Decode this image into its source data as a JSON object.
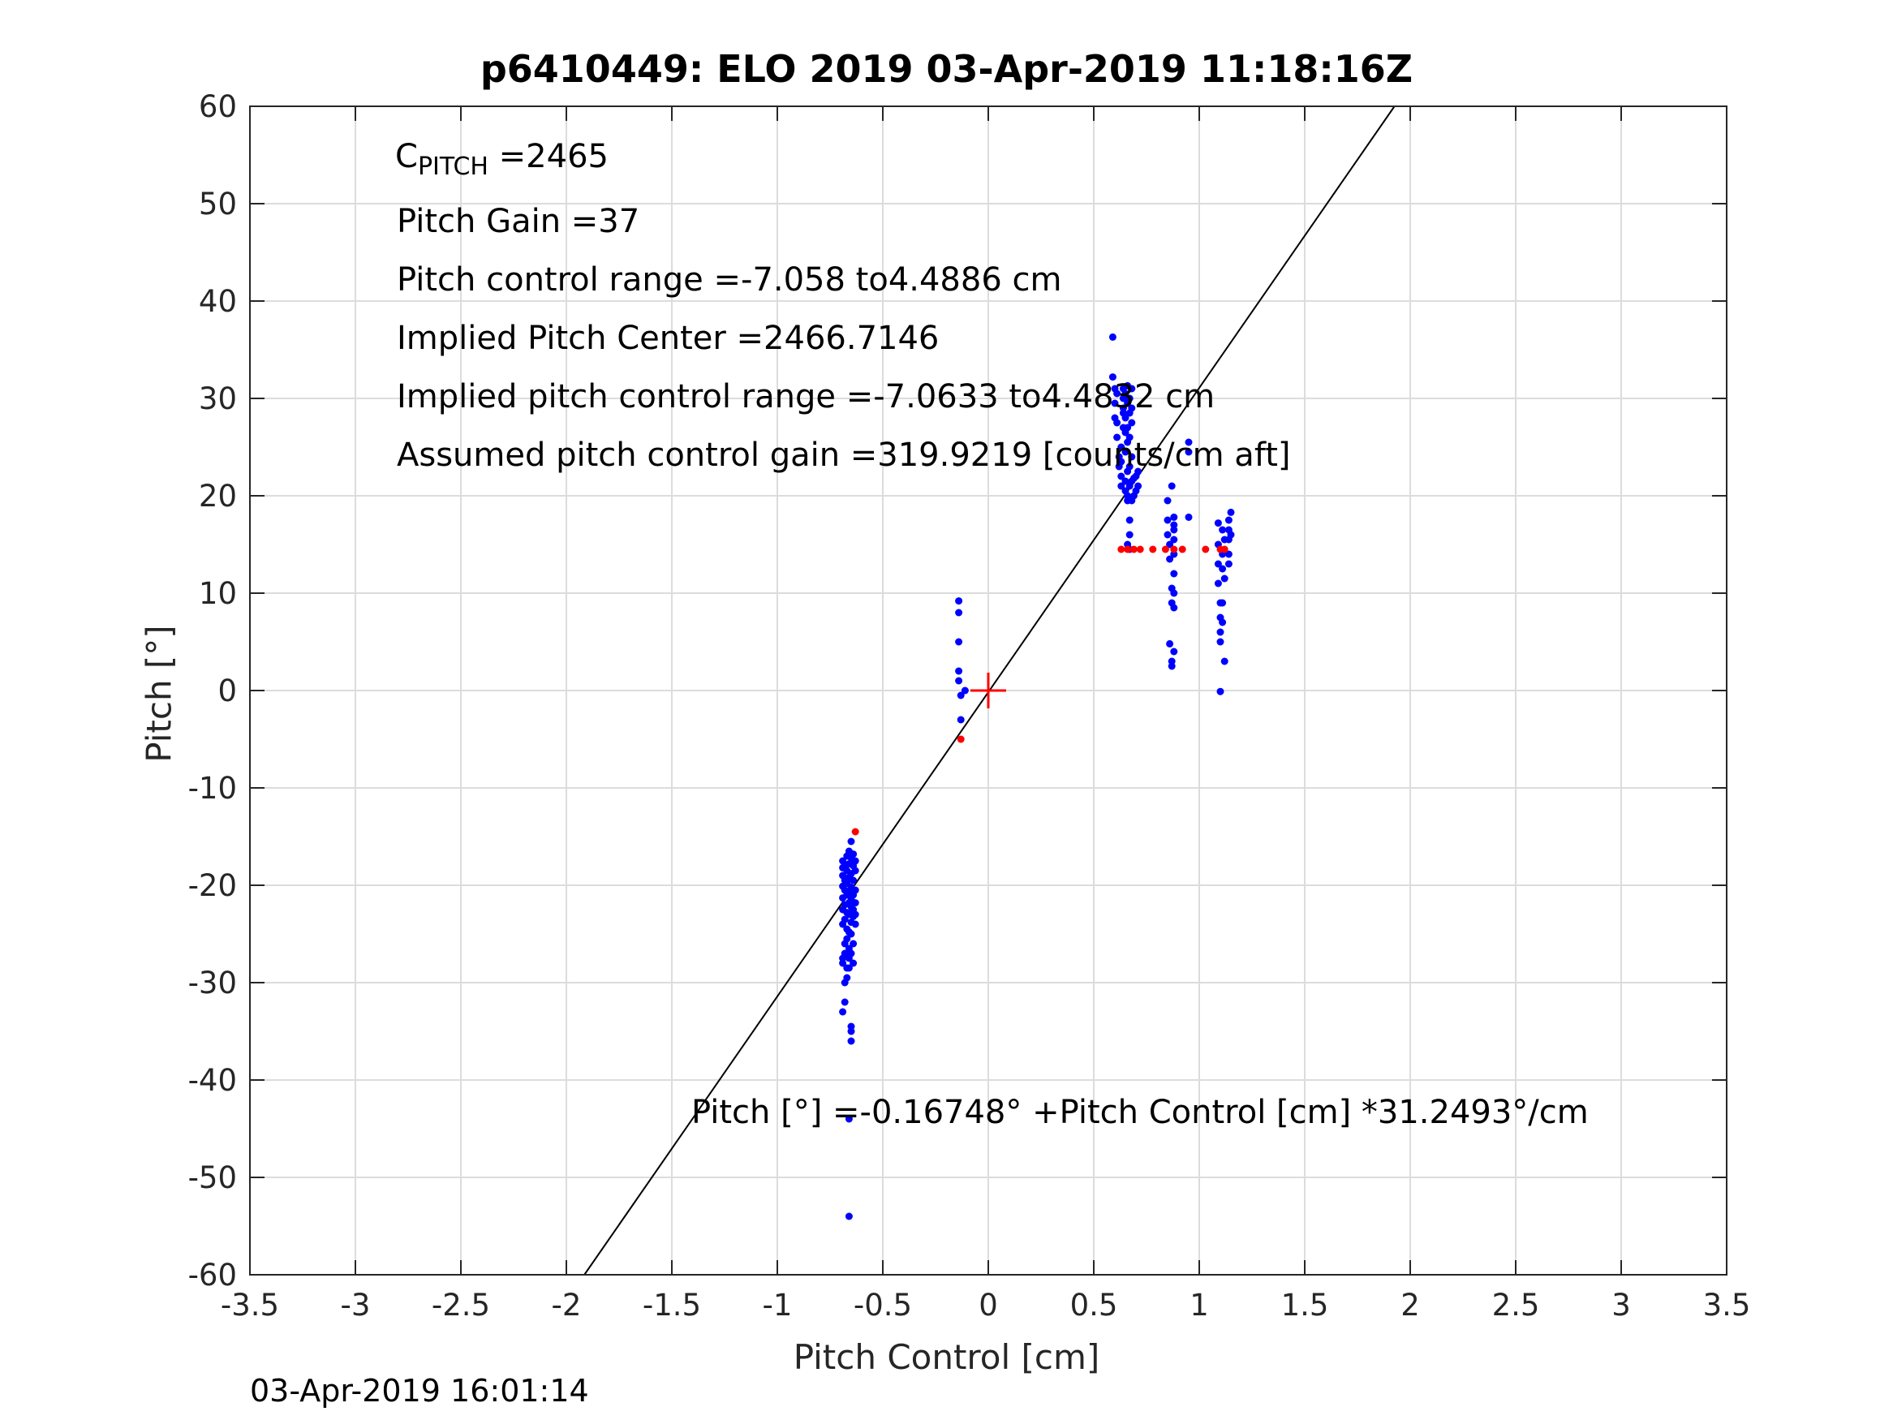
{
  "chart_data": {
    "type": "scatter",
    "title": "p6410449: ELO 2019 03-Apr-2019 11:18:16Z",
    "xlabel": "Pitch Control [cm]",
    "ylabel": "Pitch [°]",
    "xlim": [
      -3.5,
      3.5
    ],
    "ylim": [
      -60,
      60
    ],
    "xticks": [
      -3.5,
      -3,
      -2.5,
      -2,
      -1.5,
      -1,
      -0.5,
      0,
      0.5,
      1,
      1.5,
      2,
      2.5,
      3,
      3.5
    ],
    "yticks": [
      -60,
      -50,
      -40,
      -30,
      -20,
      -10,
      0,
      10,
      20,
      30,
      40,
      50,
      60
    ],
    "grid": true,
    "fit_line": {
      "intercept": -0.16748,
      "slope": 31.2493,
      "color": "#000000"
    },
    "center_marker": {
      "x": 0,
      "y": 0,
      "color": "#ff0000"
    },
    "series": [
      {
        "name": "measurements",
        "color": "#0000ff",
        "points": [
          [
            -0.69,
            -17.5
          ],
          [
            -0.69,
            -18.2
          ],
          [
            -0.69,
            -19.0
          ],
          [
            -0.69,
            -20.1
          ],
          [
            -0.69,
            -21.3
          ],
          [
            -0.69,
            -22.5
          ],
          [
            -0.69,
            -24.0
          ],
          [
            -0.69,
            -27.5
          ],
          [
            -0.69,
            -28.0
          ],
          [
            -0.69,
            -33.0
          ],
          [
            -0.68,
            -18.0
          ],
          [
            -0.68,
            -19.5
          ],
          [
            -0.68,
            -20.5
          ],
          [
            -0.68,
            -22.0
          ],
          [
            -0.68,
            -23.5
          ],
          [
            -0.68,
            -26.0
          ],
          [
            -0.68,
            -27.0
          ],
          [
            -0.68,
            -30.0
          ],
          [
            -0.68,
            -32.0
          ],
          [
            -0.67,
            -17.0
          ],
          [
            -0.67,
            -18.5
          ],
          [
            -0.67,
            -19.8
          ],
          [
            -0.67,
            -21.0
          ],
          [
            -0.67,
            -22.8
          ],
          [
            -0.67,
            -24.5
          ],
          [
            -0.67,
            -25.5
          ],
          [
            -0.67,
            -28.5
          ],
          [
            -0.67,
            -29.5
          ],
          [
            -0.66,
            -16.5
          ],
          [
            -0.66,
            -17.8
          ],
          [
            -0.66,
            -19.2
          ],
          [
            -0.66,
            -20.8
          ],
          [
            -0.66,
            -21.8
          ],
          [
            -0.66,
            -23.0
          ],
          [
            -0.66,
            -24.8
          ],
          [
            -0.66,
            -26.5
          ],
          [
            -0.66,
            -27.5
          ],
          [
            -0.66,
            -28.5
          ],
          [
            -0.66,
            -44.0
          ],
          [
            -0.66,
            -54.0
          ],
          [
            -0.65,
            -15.5
          ],
          [
            -0.65,
            -17.2
          ],
          [
            -0.65,
            -18.8
          ],
          [
            -0.65,
            -20.2
          ],
          [
            -0.65,
            -21.5
          ],
          [
            -0.65,
            -22.2
          ],
          [
            -0.65,
            -23.8
          ],
          [
            -0.65,
            -25.0
          ],
          [
            -0.65,
            -27.0
          ],
          [
            -0.65,
            -34.5
          ],
          [
            -0.65,
            -35.0
          ],
          [
            -0.65,
            -36.0
          ],
          [
            -0.64,
            -16.8
          ],
          [
            -0.64,
            -18.0
          ],
          [
            -0.64,
            -19.5
          ],
          [
            -0.64,
            -21.0
          ],
          [
            -0.64,
            -22.5
          ],
          [
            -0.64,
            -23.2
          ],
          [
            -0.64,
            -26.0
          ],
          [
            -0.64,
            -28.0
          ],
          [
            -0.63,
            -17.5
          ],
          [
            -0.63,
            -18.5
          ],
          [
            -0.63,
            -20.5
          ],
          [
            -0.63,
            -21.8
          ],
          [
            -0.63,
            -23.0
          ],
          [
            -0.63,
            -24.0
          ],
          [
            -0.14,
            9.2
          ],
          [
            -0.14,
            8.0
          ],
          [
            -0.14,
            5.0
          ],
          [
            -0.14,
            2.0
          ],
          [
            -0.14,
            1.0
          ],
          [
            -0.13,
            -0.5
          ],
          [
            -0.13,
            -3.0
          ],
          [
            -0.11,
            0.0
          ],
          [
            0.59,
            36.3
          ],
          [
            0.59,
            32.2
          ],
          [
            0.6,
            31.0
          ],
          [
            0.6,
            29.5
          ],
          [
            0.6,
            28.0
          ],
          [
            0.61,
            30.5
          ],
          [
            0.61,
            27.5
          ],
          [
            0.61,
            26.0
          ],
          [
            0.62,
            24.0
          ],
          [
            0.62,
            23.0
          ],
          [
            0.63,
            21.0
          ],
          [
            0.63,
            22.0
          ],
          [
            0.63,
            23.5
          ],
          [
            0.63,
            25.0
          ],
          [
            0.64,
            27.0
          ],
          [
            0.64,
            28.5
          ],
          [
            0.64,
            30.0
          ],
          [
            0.64,
            31.0
          ],
          [
            0.64,
            29.0
          ],
          [
            0.65,
            20.5
          ],
          [
            0.65,
            21.5
          ],
          [
            0.65,
            24.5
          ],
          [
            0.65,
            26.5
          ],
          [
            0.65,
            28.0
          ],
          [
            0.65,
            30.5
          ],
          [
            0.66,
            20.0
          ],
          [
            0.66,
            22.5
          ],
          [
            0.66,
            25.5
          ],
          [
            0.66,
            27.0
          ],
          [
            0.66,
            29.5
          ],
          [
            0.66,
            31.3
          ],
          [
            0.66,
            19.5
          ],
          [
            0.66,
            15.0
          ],
          [
            0.67,
            21.0
          ],
          [
            0.67,
            23.0
          ],
          [
            0.67,
            26.0
          ],
          [
            0.67,
            28.5
          ],
          [
            0.67,
            30.0
          ],
          [
            0.67,
            17.5
          ],
          [
            0.67,
            16.0
          ],
          [
            0.67,
            14.5
          ],
          [
            0.68,
            19.5
          ],
          [
            0.68,
            21.5
          ],
          [
            0.68,
            24.0
          ],
          [
            0.68,
            27.5
          ],
          [
            0.68,
            29.0
          ],
          [
            0.68,
            31.0
          ],
          [
            0.69,
            20.0
          ],
          [
            0.69,
            21.8
          ],
          [
            0.7,
            20.5
          ],
          [
            0.7,
            22.0
          ],
          [
            0.71,
            21.0
          ],
          [
            0.71,
            22.5
          ],
          [
            0.85,
            19.5
          ],
          [
            0.85,
            17.5
          ],
          [
            0.85,
            16.0
          ],
          [
            0.86,
            15.0
          ],
          [
            0.86,
            13.5
          ],
          [
            0.86,
            4.8
          ],
          [
            0.87,
            3.0
          ],
          [
            0.87,
            2.5
          ],
          [
            0.87,
            10.5
          ],
          [
            0.87,
            9.0
          ],
          [
            0.87,
            21.0
          ],
          [
            0.88,
            17.0
          ],
          [
            0.88,
            15.5
          ],
          [
            0.88,
            14.0
          ],
          [
            0.88,
            12.0
          ],
          [
            0.88,
            10.0
          ],
          [
            0.88,
            8.5
          ],
          [
            0.88,
            4.0
          ],
          [
            0.88,
            16.5
          ],
          [
            0.88,
            17.8
          ],
          [
            0.95,
            25.5
          ],
          [
            0.95,
            24.5
          ],
          [
            0.95,
            17.8
          ],
          [
            1.09,
            17.2
          ],
          [
            1.09,
            15.0
          ],
          [
            1.09,
            13.0
          ],
          [
            1.09,
            11.0
          ],
          [
            1.1,
            9.0
          ],
          [
            1.1,
            7.5
          ],
          [
            1.1,
            6.0
          ],
          [
            1.1,
            5.0
          ],
          [
            1.1,
            -0.1
          ],
          [
            1.11,
            16.5
          ],
          [
            1.11,
            14.0
          ],
          [
            1.11,
            12.5
          ],
          [
            1.11,
            9.0
          ],
          [
            1.11,
            7.0
          ],
          [
            1.12,
            15.5
          ],
          [
            1.12,
            11.5
          ],
          [
            1.12,
            3.0
          ],
          [
            1.14,
            17.5
          ],
          [
            1.14,
            16.5
          ],
          [
            1.14,
            15.5
          ],
          [
            1.14,
            14.0
          ],
          [
            1.14,
            13.0
          ],
          [
            1.15,
            18.3
          ],
          [
            1.15,
            16.0
          ]
        ]
      },
      {
        "name": "limit points",
        "color": "#ff0000",
        "points": [
          [
            -0.63,
            -14.5
          ],
          [
            -0.13,
            -5.0
          ],
          [
            0.63,
            14.5
          ],
          [
            0.66,
            14.5
          ],
          [
            0.69,
            14.5
          ],
          [
            0.72,
            14.5
          ],
          [
            0.78,
            14.5
          ],
          [
            0.84,
            14.5
          ],
          [
            0.88,
            14.5
          ],
          [
            0.92,
            14.5
          ],
          [
            1.03,
            14.5
          ],
          [
            1.1,
            14.5
          ],
          [
            1.12,
            14.5
          ]
        ]
      }
    ]
  },
  "annotations": {
    "cpitch_prefix": "C",
    "cpitch_sub": "PITCH",
    "cpitch_value": " =2465",
    "pitch_gain": "Pitch Gain =37",
    "control_range": "Pitch control range =-7.058 to4.4886 cm",
    "implied_center": "Implied Pitch Center =2466.7146",
    "implied_range": "Implied pitch control range =-7.0633 to4.4832 cm",
    "assumed_gain": "Assumed pitch control gain =319.9219 [counts/cm aft]",
    "fit_equation": "Pitch [°] =-0.16748° +Pitch Control [cm] *31.2493°/cm"
  },
  "timestamp": "03-Apr-2019 16:01:14"
}
